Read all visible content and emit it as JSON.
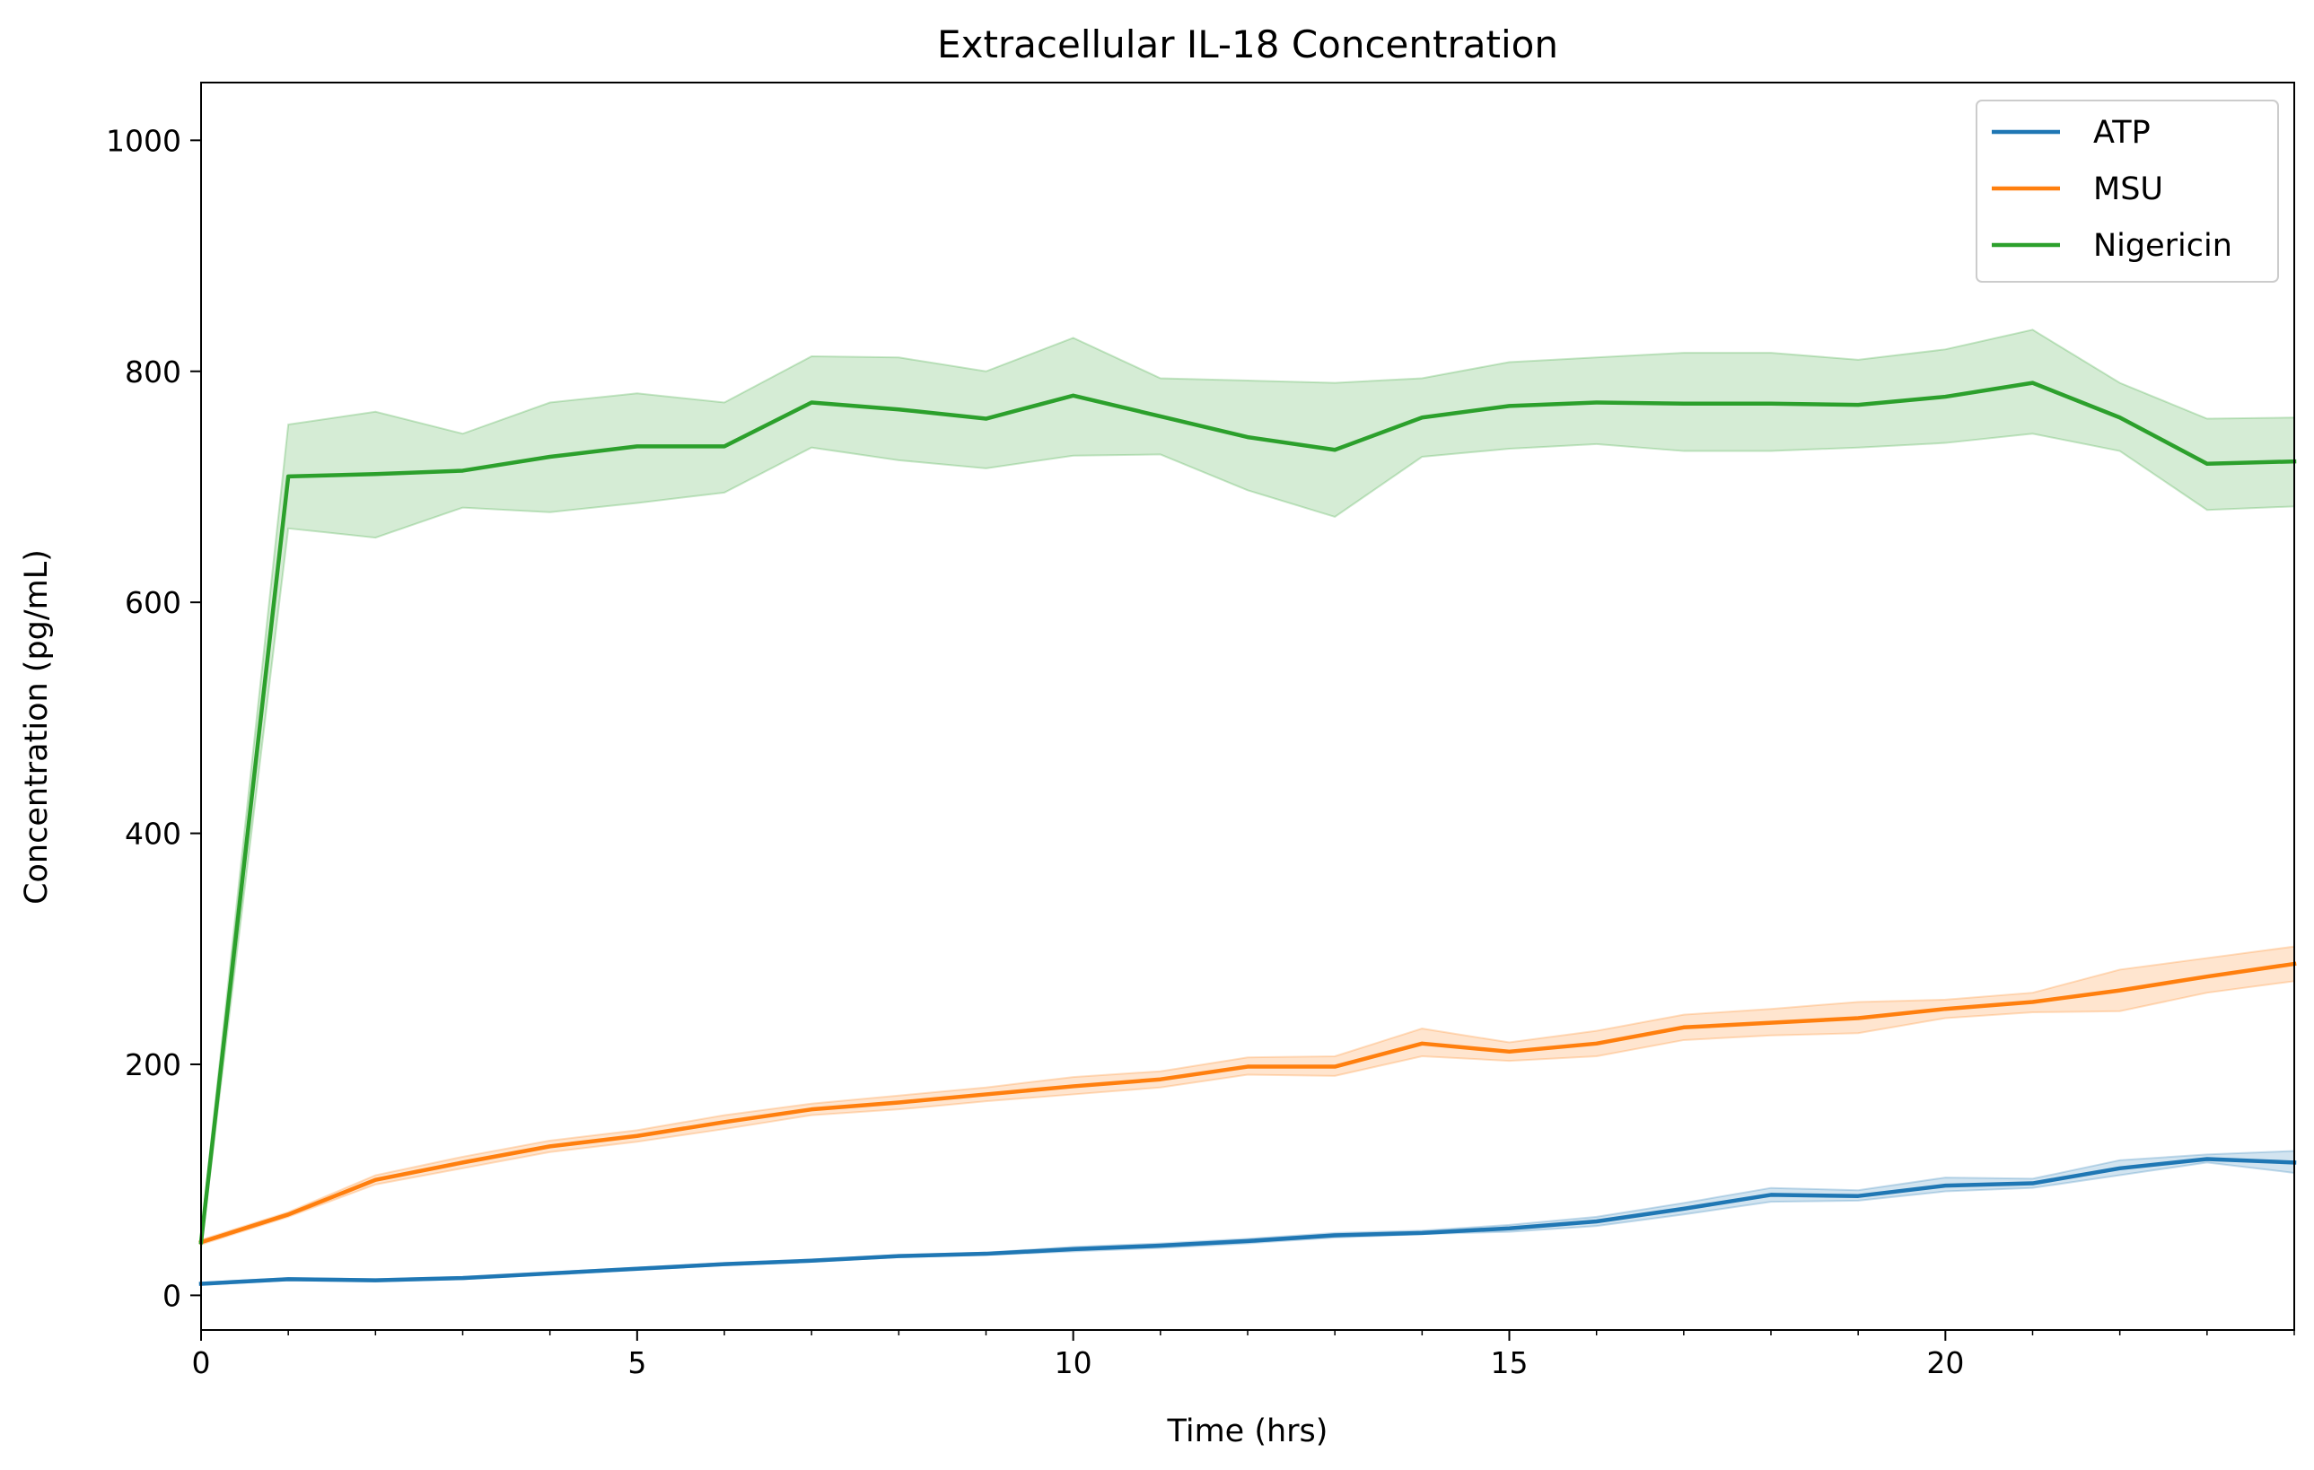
{
  "chart_data": {
    "type": "line",
    "title": "Extracellular IL-18 Concentration",
    "xlabel": "Time (hrs)",
    "ylabel": "Concentration (pg/mL)",
    "xlim": [
      0,
      24
    ],
    "ylim": [
      -30,
      1050
    ],
    "xticks": [
      0,
      5,
      10,
      15,
      20
    ],
    "yticks": [
      0,
      200,
      400,
      600,
      800,
      1000
    ],
    "grid": false,
    "legend_position": "top-right",
    "x": [
      0,
      1,
      2,
      3,
      4,
      5,
      6,
      7,
      8,
      9,
      10,
      11,
      12,
      13,
      14,
      15,
      16,
      17,
      18,
      19,
      20,
      21,
      22,
      23,
      24
    ],
    "series": [
      {
        "name": "ATP",
        "color": "#1f77b4",
        "values": [
          10,
          14,
          13,
          15,
          19,
          23,
          27,
          30,
          34,
          36,
          40,
          43,
          47,
          52,
          54,
          58,
          64,
          75,
          87,
          86,
          95,
          97,
          110,
          118,
          115
        ],
        "lower": [
          9,
          13,
          12,
          14,
          18,
          22,
          26,
          29,
          33,
          35,
          38,
          41,
          45,
          50,
          53,
          55,
          60,
          70,
          81,
          82,
          90,
          93,
          104,
          115,
          106
        ],
        "upper": [
          11,
          15,
          14,
          16,
          20,
          24,
          28,
          31,
          35,
          37,
          42,
          45,
          49,
          54,
          56,
          61,
          68,
          80,
          93,
          91,
          102,
          101,
          117,
          122,
          125
        ]
      },
      {
        "name": "MSU",
        "color": "#ff7f0e",
        "values": [
          46,
          70,
          100,
          115,
          129,
          138,
          150,
          161,
          167,
          174,
          181,
          187,
          198,
          198,
          218,
          211,
          218,
          232,
          236,
          240,
          248,
          254,
          264,
          276,
          287
        ],
        "lower": [
          44,
          68,
          96,
          110,
          124,
          133,
          144,
          156,
          161,
          168,
          174,
          180,
          191,
          190,
          207,
          203,
          207,
          221,
          225,
          227,
          240,
          245,
          246,
          262,
          272
        ],
        "upper": [
          48,
          72,
          104,
          120,
          134,
          143,
          156,
          166,
          173,
          180,
          189,
          194,
          206,
          207,
          231,
          219,
          229,
          243,
          248,
          254,
          256,
          262,
          282,
          292,
          302
        ]
      },
      {
        "name": "Nigericin",
        "color": "#2ca02c",
        "values": [
          46,
          709,
          711,
          714,
          726,
          735,
          735,
          773,
          767,
          759,
          779,
          761,
          743,
          732,
          760,
          770,
          773,
          772,
          772,
          771,
          778,
          790,
          760,
          720,
          722
        ],
        "lower": [
          40,
          664,
          656,
          682,
          678,
          686,
          695,
          734,
          723,
          716,
          727,
          728,
          697,
          674,
          726,
          733,
          737,
          731,
          731,
          734,
          738,
          746,
          731,
          680,
          683
        ],
        "upper": [
          52,
          754,
          765,
          746,
          773,
          781,
          773,
          813,
          812,
          800,
          829,
          794,
          792,
          790,
          794,
          808,
          812,
          816,
          816,
          810,
          819,
          836,
          790,
          759,
          760
        ]
      }
    ]
  }
}
